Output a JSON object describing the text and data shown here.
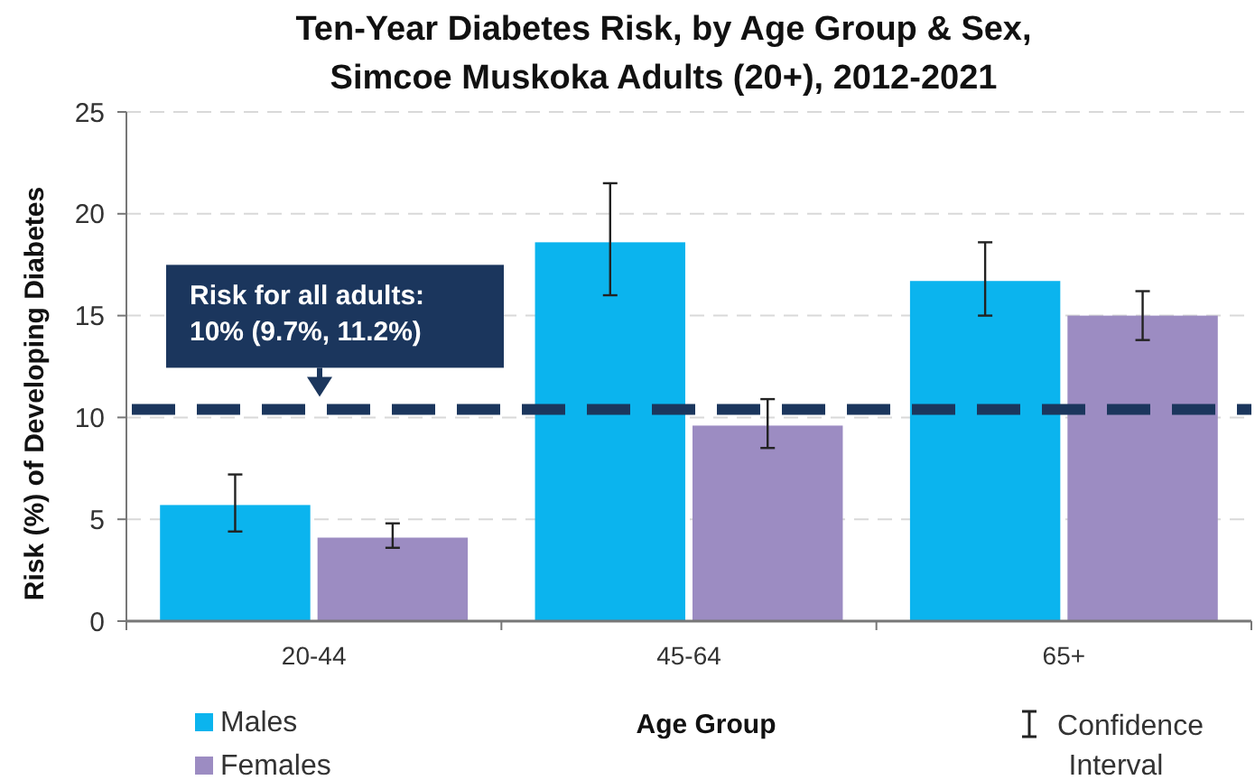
{
  "chart_data": {
    "type": "bar",
    "title": "Ten-Year Diabetes Risk, by Age Group & Sex,\nSimcoe Muskoka Adults (20+), 2012-2021",
    "xlabel": "Age Group",
    "ylabel": "Risk (%) of Developing Diabetes",
    "categories": [
      "20-44",
      "45-64",
      "65+"
    ],
    "series": [
      {
        "name": "Males",
        "color": "#0bb4ee",
        "values": [
          5.7,
          18.6,
          16.7
        ],
        "errors": [
          [
            4.4,
            7.2
          ],
          [
            16.0,
            21.5
          ],
          [
            15.0,
            18.6
          ]
        ]
      },
      {
        "name": "Females",
        "color": "#9c8cc2",
        "values": [
          4.1,
          9.6,
          15.0
        ],
        "errors": [
          [
            3.6,
            4.8
          ],
          [
            8.5,
            10.9
          ],
          [
            13.8,
            16.2
          ]
        ]
      }
    ],
    "ylim": [
      0,
      25
    ],
    "yticks": [
      0,
      5,
      10,
      15,
      20,
      25
    ],
    "grid": "y",
    "legend": "bottom left",
    "ref_lines": [
      {
        "axis": "y",
        "value": 10.4,
        "label": "Risk for all adults:\n10% (9.7%, 11.2%)",
        "color": "#1b365d",
        "line_style": "dashed"
      }
    ],
    "annotations": [
      "Confidence Interval"
    ]
  }
}
